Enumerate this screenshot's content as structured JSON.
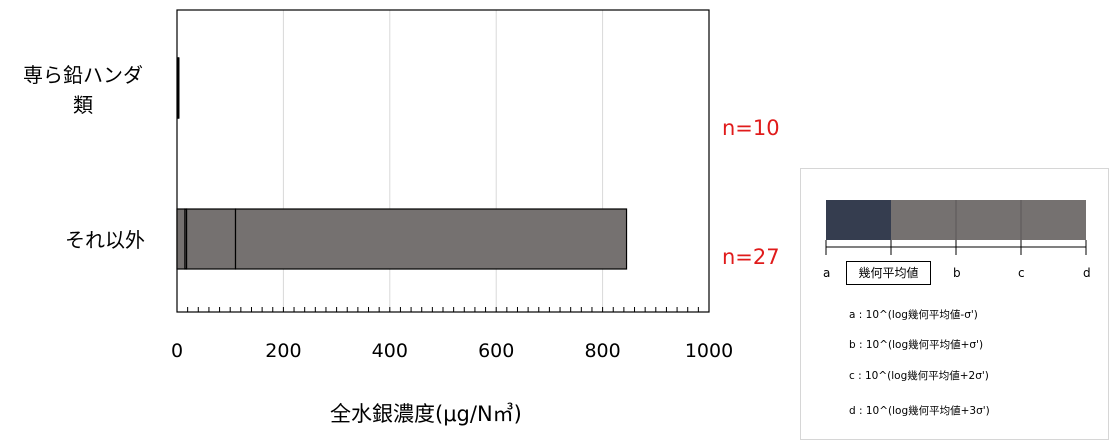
{
  "chart_data": {
    "type": "bar",
    "orientation": "horizontal",
    "categories": [
      "専ら鉛ハンダ類",
      "それ以外"
    ],
    "category_labels": [
      [
        "専ら鉛ハンダ",
        "類"
      ],
      [
        "それ以外"
      ]
    ],
    "n_labels": [
      "n=10",
      "n=27"
    ],
    "segments": [
      {
        "a": 1.5,
        "geo_mean": 1.8,
        "b": 2.2,
        "c": 2.6,
        "d": 3.0
      },
      {
        "a": 0,
        "geo_mean": 15,
        "b": 18,
        "c": 110,
        "d": 845
      }
    ],
    "xlim": [
      0,
      1000
    ],
    "xticks": [
      "0",
      "200",
      "400",
      "600",
      "800",
      "1000"
    ],
    "xlabel": "全水銀濃度(μg/N㎥)",
    "grid": "vertical",
    "colors": {
      "geo_fill": "#353d4f",
      "box_fill": "#757170",
      "stroke": "#000000",
      "n_label": "#e01b1b"
    }
  },
  "legend": {
    "letters": [
      "a",
      "b",
      "c",
      "d"
    ],
    "geo_label": "幾何平均値",
    "formulas": [
      "a : 10^(log幾何平均値-σ')",
      "b : 10^(log幾何平均値+σ')",
      "c : 10^(log幾何平均値+2σ')",
      "d : 10^(log幾何平均値+3σ')"
    ]
  }
}
